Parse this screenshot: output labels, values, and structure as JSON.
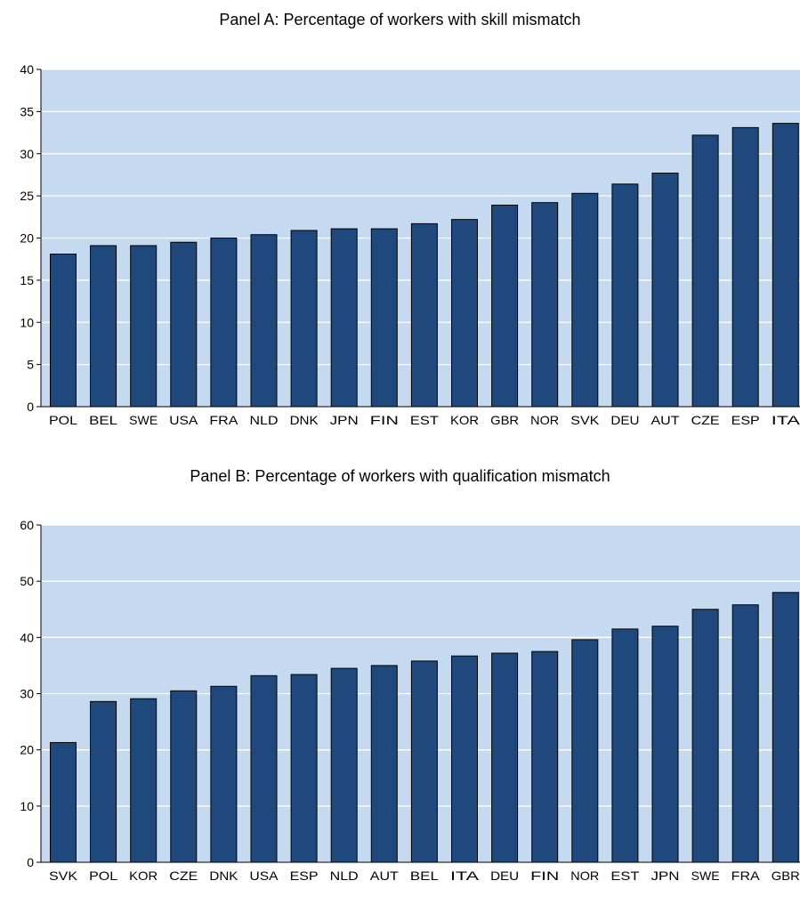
{
  "chart_data": [
    {
      "type": "bar",
      "title": "Panel A: Percentage of workers with skill mismatch",
      "xlabel": "",
      "ylabel": "",
      "ylim": [
        0,
        40
      ],
      "yticks": [
        0,
        5,
        10,
        15,
        20,
        25,
        30,
        35,
        40
      ],
      "grid": true,
      "legend": "none",
      "categories": [
        "POL",
        "BEL",
        "SWE",
        "USA",
        "FRA",
        "NLD",
        "DNK",
        "JPN",
        "FIN",
        "EST",
        "KOR",
        "GBR",
        "NOR",
        "SVK",
        "DEU",
        "AUT",
        "CZE",
        "ESP",
        "ITA"
      ],
      "values": [
        18.1,
        19.1,
        19.1,
        19.5,
        20.0,
        20.4,
        20.9,
        21.1,
        21.1,
        21.7,
        22.2,
        23.9,
        24.2,
        25.3,
        26.4,
        27.7,
        32.2,
        33.1,
        33.6
      ],
      "colors": {
        "bar": "#1f497d",
        "plot_bg": "#c5d9f1",
        "grid": "#ffffff"
      }
    },
    {
      "type": "bar",
      "title": "Panel B: Percentage of workers with qualification mismatch",
      "xlabel": "",
      "ylabel": "",
      "ylim": [
        0,
        60
      ],
      "yticks": [
        0,
        10,
        20,
        30,
        40,
        50,
        60
      ],
      "grid": true,
      "legend": "none",
      "categories": [
        "SVK",
        "POL",
        "KOR",
        "CZE",
        "DNK",
        "USA",
        "ESP",
        "NLD",
        "AUT",
        "BEL",
        "ITA",
        "DEU",
        "FIN",
        "NOR",
        "EST",
        "JPN",
        "SWE",
        "FRA",
        "GBR"
      ],
      "values": [
        21.3,
        28.6,
        29.1,
        30.5,
        31.3,
        33.2,
        33.4,
        34.5,
        35.0,
        35.8,
        36.7,
        37.2,
        37.5,
        39.6,
        41.5,
        42.0,
        45.0,
        45.8,
        48.0
      ],
      "colors": {
        "bar": "#1f497d",
        "plot_bg": "#c5d9f1",
        "grid": "#ffffff"
      }
    }
  ]
}
